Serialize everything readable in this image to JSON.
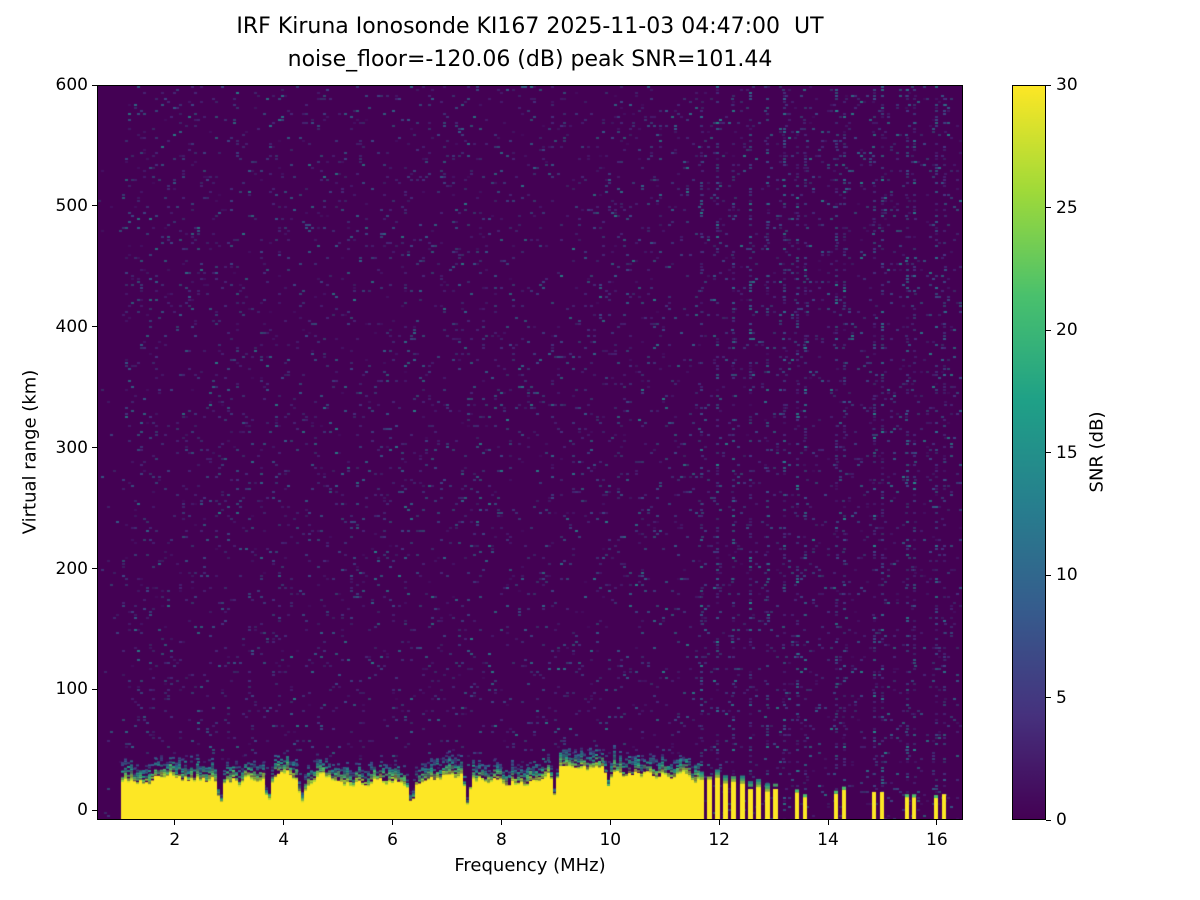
{
  "chart_data": {
    "type": "heatmap",
    "title": "IRF Kiruna Ionosonde KI167 2025-11-03 04:47:00  UT",
    "subtitle": "noise_floor=-120.06 (dB) peak SNR=101.44",
    "station": "IRF Kiruna Ionosonde KI167",
    "timestamp_ut": "2025-11-03 04:47:00",
    "noise_floor_db": -120.06,
    "peak_snr_db": 101.44,
    "xlabel": "Frequency (MHz)",
    "ylabel": "Virtual range (km)",
    "xlim": [
      0.57,
      16.48
    ],
    "ylim": [
      -8,
      600
    ],
    "xticks": [
      2,
      4,
      6,
      8,
      10,
      12,
      14,
      16
    ],
    "yticks": [
      0,
      100,
      200,
      300,
      400,
      500,
      600
    ],
    "grid": false,
    "legend": "none",
    "colorbar": {
      "label": "SNR (dB)",
      "min": 0,
      "max": 30,
      "ticks": [
        0,
        5,
        10,
        15,
        20,
        25,
        30
      ],
      "colormap": "viridis",
      "stops": [
        "#440154",
        "#46327e",
        "#365c8d",
        "#277f8e",
        "#1fa187",
        "#4ac16d",
        "#a0da39",
        "#fde725"
      ]
    },
    "colors": {
      "background": "#440154",
      "saturated_band": "#fde725",
      "speckles": [
        "#472d7b",
        "#472d7b",
        "#443983",
        "#3b528b",
        "#3b528b",
        "#31688e",
        "#2c728e",
        "#26828e",
        "#21918c"
      ],
      "fringe": [
        "#a0da39",
        "#4ac16d",
        "#1fa187",
        "#277f8e",
        "#365c8d"
      ]
    },
    "features": {
      "ground_echo": {
        "freq_start_mhz": 1.0,
        "freq_end_mhz": 11.62,
        "top_km_mean": 28,
        "top_km_jitter": 8,
        "notch_freqs_mhz": [
          2.8,
          3.68,
          4.3,
          6.32,
          7.35,
          8.95,
          9.95
        ],
        "notch_depths": [
          0.1,
          0.22,
          0.3,
          0.08,
          0.12,
          0.33,
          0.5
        ],
        "notch_halfwidth_mhz": 0.09
      },
      "striped_echo_freqs_mhz": [
        11.68,
        11.82,
        11.97,
        12.12,
        12.27,
        12.42,
        12.57,
        12.72,
        12.88,
        13.03
      ],
      "sparse_echo_freqs_mhz": [
        13.44,
        13.58,
        14.16,
        14.3,
        14.86,
        15.0,
        15.46,
        15.6,
        16.0,
        16.14
      ],
      "rfi_column_freqs_mhz": [
        11.68,
        11.97,
        12.27,
        12.57,
        12.88,
        13.2,
        13.44,
        13.58,
        14.16,
        14.3,
        14.86,
        15.0,
        15.46,
        15.6,
        16.0,
        16.14
      ]
    },
    "random_seed": 167
  }
}
